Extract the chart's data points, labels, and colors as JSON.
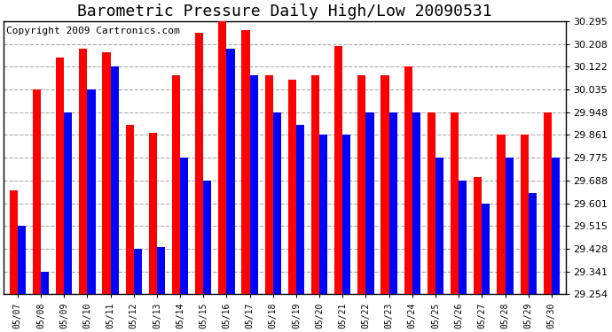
{
  "title": "Barometric Pressure Daily High/Low 20090531",
  "copyright": "Copyright 2009 Cartronics.com",
  "dates": [
    "05/07",
    "05/08",
    "05/09",
    "05/10",
    "05/11",
    "05/12",
    "05/13",
    "05/14",
    "05/15",
    "05/16",
    "05/17",
    "05/18",
    "05/19",
    "05/20",
    "05/21",
    "05/22",
    "05/23",
    "05/24",
    "05/25",
    "05/26",
    "05/27",
    "05/28",
    "05/29",
    "05/30"
  ],
  "highs": [
    29.65,
    30.035,
    30.156,
    30.19,
    30.175,
    29.9,
    29.87,
    30.09,
    30.25,
    30.295,
    30.26,
    30.09,
    30.07,
    30.09,
    30.2,
    30.09,
    30.09,
    30.122,
    29.948,
    29.948,
    29.7,
    29.861,
    29.861,
    29.948
  ],
  "lows": [
    29.515,
    29.341,
    29.948,
    30.035,
    30.122,
    29.428,
    29.435,
    29.775,
    29.688,
    30.19,
    30.09,
    29.948,
    29.9,
    29.861,
    29.862,
    29.948,
    29.948,
    29.948,
    29.775,
    29.688,
    29.601,
    29.775,
    29.64,
    29.775
  ],
  "bar_high_color": "#ff0000",
  "bar_low_color": "#0000ff",
  "bg_color": "#ffffff",
  "grid_color": "#aaaaaa",
  "yticks": [
    29.254,
    29.341,
    29.428,
    29.515,
    29.601,
    29.688,
    29.775,
    29.861,
    29.948,
    30.035,
    30.122,
    30.208,
    30.295
  ],
  "ymin": 29.254,
  "ymax": 30.295,
  "title_fontsize": 13,
  "copyright_fontsize": 8,
  "bar_width": 0.35
}
